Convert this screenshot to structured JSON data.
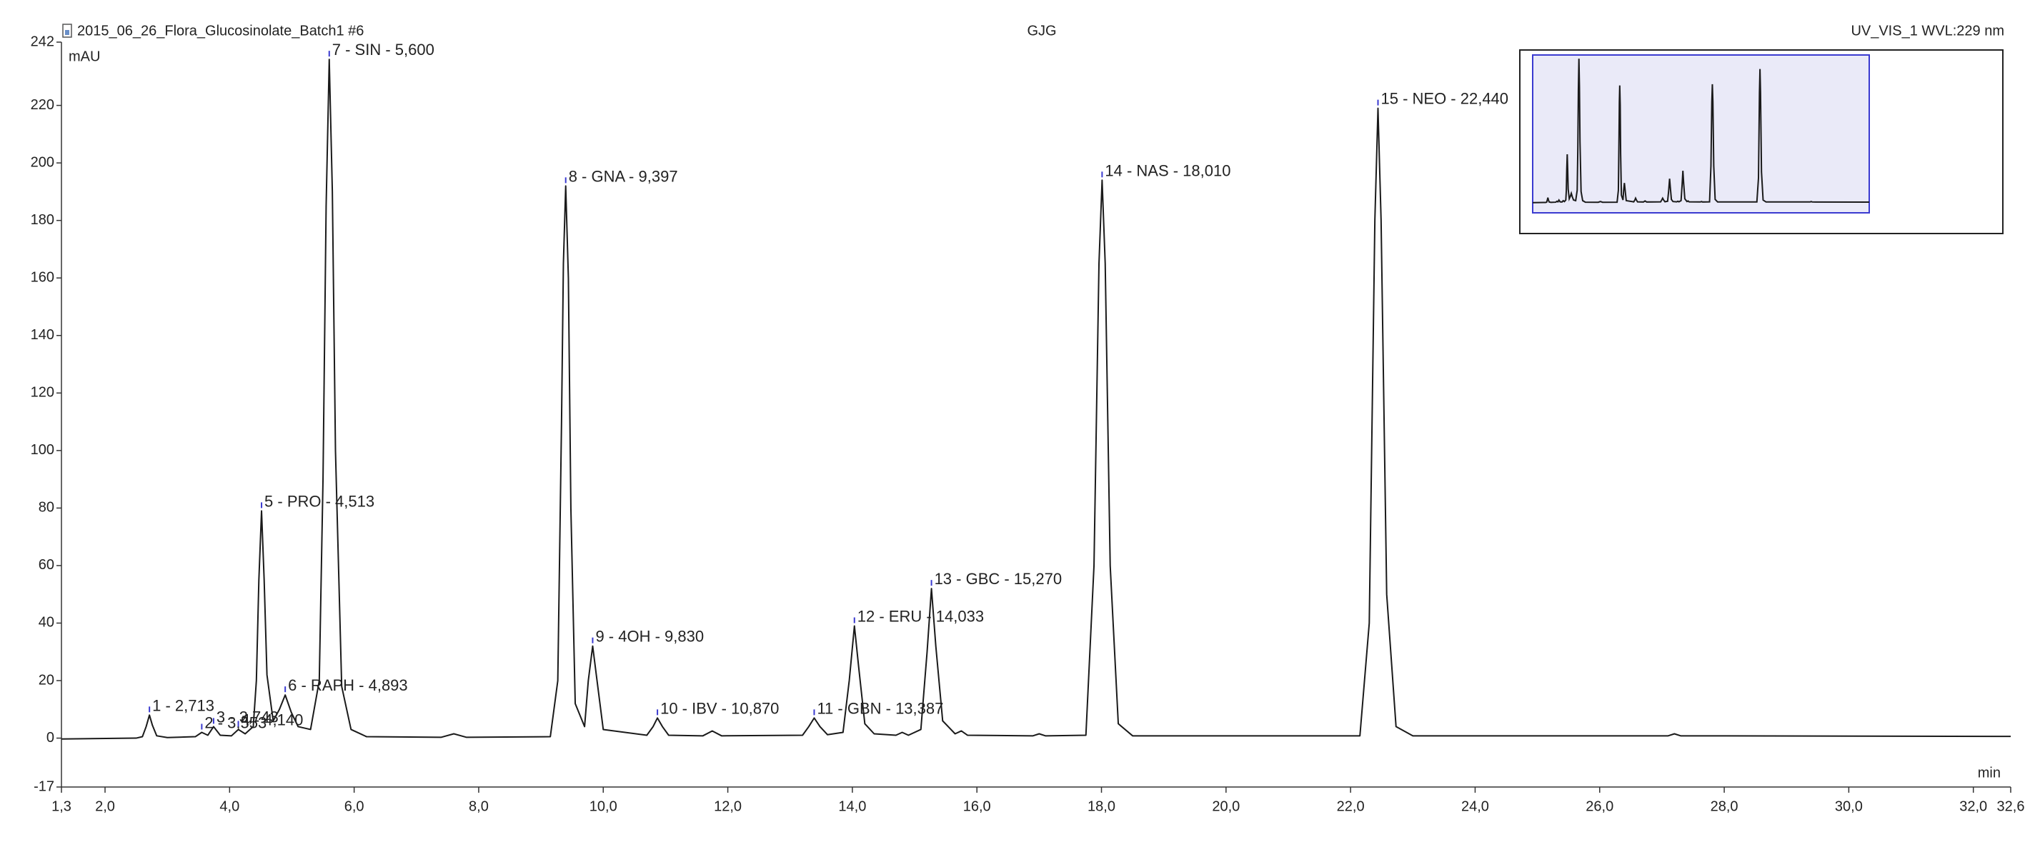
{
  "chart_data": {
    "type": "line",
    "title": "2015_06_26_Flora_Glucosinolate_Batch1 #6",
    "operator": "GJG",
    "detector": "UV_VIS_1 WVL:229 nm",
    "y_label": "mAU",
    "x_label": "min",
    "color": "#1a1a1a",
    "xlim": [
      1.3,
      32.6
    ],
    "ylim": [
      -17,
      242
    ],
    "xticks": [
      {
        "value": 1.3,
        "label": "1,3"
      },
      {
        "value": 2,
        "label": "2,0"
      },
      {
        "value": 4,
        "label": "4,0"
      },
      {
        "value": 6,
        "label": "6,0"
      },
      {
        "value": 8,
        "label": "8,0"
      },
      {
        "value": 10,
        "label": "10,0"
      },
      {
        "value": 12,
        "label": "12,0"
      },
      {
        "value": 14,
        "label": "14,0"
      },
      {
        "value": 16,
        "label": "16,0"
      },
      {
        "value": 18,
        "label": "18,0"
      },
      {
        "value": 20,
        "label": "20,0"
      },
      {
        "value": 22,
        "label": "22,0"
      },
      {
        "value": 24,
        "label": "24,0"
      },
      {
        "value": 26,
        "label": "26,0"
      },
      {
        "value": 28,
        "label": "28,0"
      },
      {
        "value": 30,
        "label": "30,0"
      },
      {
        "value": 32,
        "label": "32,0"
      },
      {
        "value": 32.6,
        "label": "32,6"
      }
    ],
    "yticks": [
      -17,
      0,
      20,
      40,
      60,
      80,
      100,
      120,
      140,
      160,
      180,
      200,
      220,
      242
    ],
    "x": [
      1.3,
      2.5,
      2.6,
      2.66,
      2.713,
      2.76,
      2.83,
      3.0,
      3.45,
      3.553,
      3.65,
      3.743,
      3.85,
      4.03,
      4.14,
      4.25,
      4.38,
      4.43,
      4.47,
      4.513,
      4.555,
      4.6,
      4.7,
      4.8,
      4.893,
      4.99,
      5.1,
      5.3,
      5.44,
      5.5,
      5.55,
      5.6,
      5.65,
      5.7,
      5.8,
      5.95,
      6.2,
      7.4,
      7.6,
      7.8,
      9.15,
      9.27,
      9.33,
      9.36,
      9.397,
      9.44,
      9.48,
      9.55,
      9.7,
      9.76,
      9.83,
      9.9,
      10.0,
      10.7,
      10.8,
      10.87,
      10.95,
      11.05,
      11.6,
      11.75,
      11.9,
      13.2,
      13.3,
      13.387,
      13.48,
      13.6,
      13.85,
      13.95,
      14.033,
      14.1,
      14.2,
      14.35,
      14.7,
      14.8,
      14.9,
      15.1,
      15.2,
      15.27,
      15.34,
      15.45,
      15.65,
      15.75,
      15.85,
      16.9,
      17.0,
      17.1,
      17.75,
      17.88,
      17.96,
      18.01,
      18.06,
      18.14,
      18.27,
      18.5,
      22.15,
      22.3,
      22.39,
      22.44,
      22.49,
      22.58,
      22.73,
      23.0,
      27.1,
      27.2,
      27.3,
      32.6
    ],
    "values": [
      -0.3,
      0,
      0.5,
      4,
      8,
      4.5,
      0.8,
      0.2,
      0.5,
      2,
      1,
      4,
      1,
      0.8,
      3,
      1.5,
      4,
      20,
      55,
      79,
      55,
      22,
      6,
      10,
      15,
      9,
      4,
      3,
      20,
      90,
      185,
      236,
      190,
      100,
      18,
      3,
      0.5,
      0.3,
      1.5,
      0.3,
      0.5,
      20,
      110,
      165,
      192,
      160,
      80,
      12,
      4,
      20,
      32,
      20,
      3,
      1,
      4,
      7,
      4,
      1,
      0.8,
      2.5,
      0.8,
      1,
      4,
      7,
      4,
      1.2,
      2,
      20,
      39,
      25,
      5,
      1.5,
      1,
      2,
      1,
      3,
      30,
      52,
      32,
      6,
      1.5,
      2.5,
      1,
      0.8,
      1.5,
      0.8,
      1,
      60,
      165,
      194,
      165,
      60,
      5,
      0.8,
      0.8,
      40,
      180,
      219,
      180,
      50,
      4,
      0.8,
      0.8,
      1.5,
      0.8,
      0.6
    ],
    "peaks": [
      {
        "label": "1 - 2,713",
        "x": 2.713,
        "y": 8
      },
      {
        "label": "2 - 3,553",
        "x": 3.553,
        "y": 2
      },
      {
        "label": "3 - 3,743",
        "x": 3.743,
        "y": 4
      },
      {
        "label": "4 - 4,140",
        "x": 4.14,
        "y": 3
      },
      {
        "label": "5 - PRO - 4,513",
        "x": 4.513,
        "y": 79
      },
      {
        "label": "6 - RAPH - 4,893",
        "x": 4.893,
        "y": 15
      },
      {
        "label": "7 - SIN - 5,600",
        "x": 5.6,
        "y": 236
      },
      {
        "label": "8 - GNA - 9,397",
        "x": 9.397,
        "y": 192
      },
      {
        "label": "9 - 4OH - 9,830",
        "x": 9.83,
        "y": 32
      },
      {
        "label": "10 - IBV - 10,870",
        "x": 10.87,
        "y": 7
      },
      {
        "label": "11 - GBN - 13,387",
        "x": 13.387,
        "y": 7
      },
      {
        "label": "12 - ERU - 14,033",
        "x": 14.033,
        "y": 39
      },
      {
        "label": "13 - GBC - 15,270",
        "x": 15.27,
        "y": 52
      },
      {
        "label": "14 - NAS - 18,010",
        "x": 18.01,
        "y": 194
      },
      {
        "label": "15 - NEO - 22,440",
        "x": 22.44,
        "y": 219
      }
    ]
  }
}
